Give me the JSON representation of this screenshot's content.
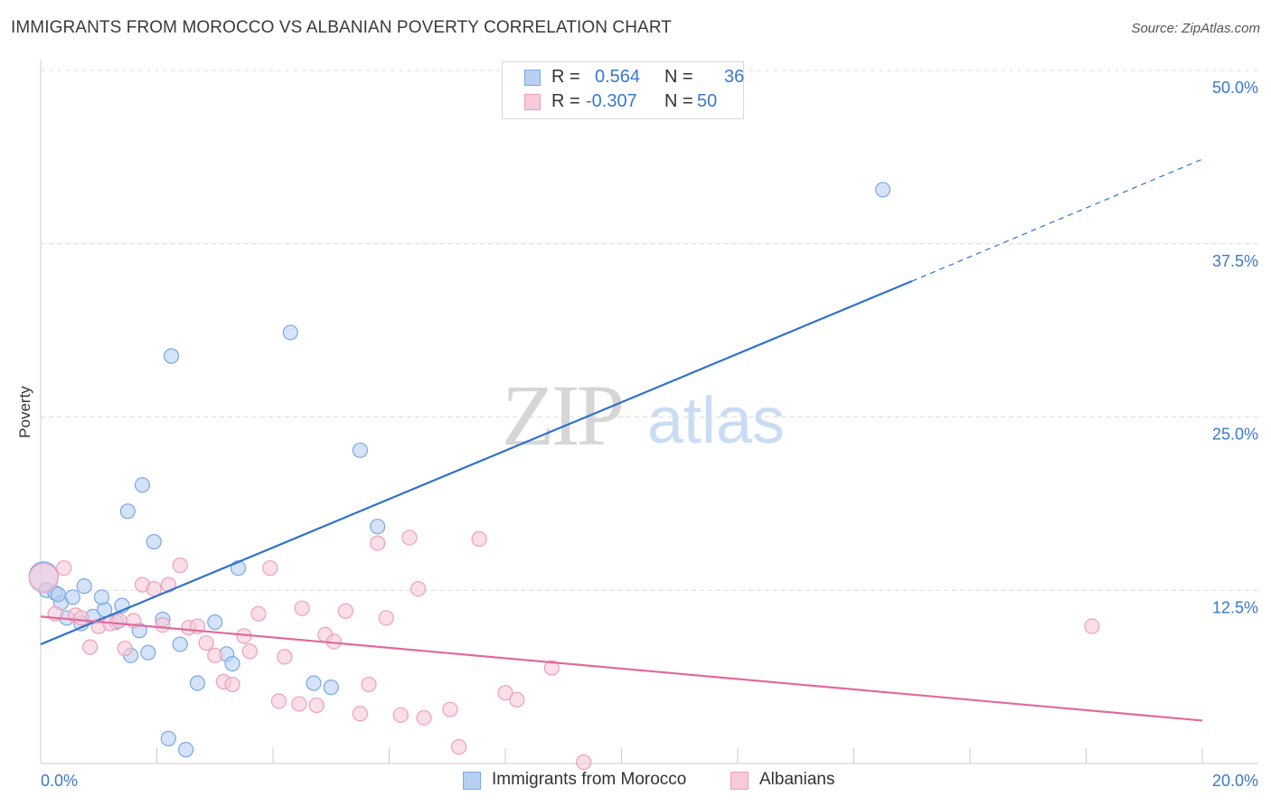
{
  "title": "IMMIGRANTS FROM MOROCCO VS ALBANIAN POVERTY CORRELATION CHART",
  "source": "Source: ZipAtlas.com",
  "watermark": {
    "zip": "ZIP",
    "atlas": "atlas"
  },
  "legend": {
    "r_label": "R =",
    "n_label": "N =",
    "series": [
      {
        "r": "0.564",
        "n": "36"
      },
      {
        "r": "-0.307",
        "n": "50"
      }
    ]
  },
  "chart_data": {
    "type": "scatter",
    "title": "IMMIGRANTS FROM MOROCCO VS ALBANIAN POVERTY CORRELATION CHART",
    "xlabel": "",
    "ylabel": "Poverty",
    "xlim": [
      0,
      20
    ],
    "ylim": [
      0,
      50
    ],
    "x_tick_labels": {
      "0": "0.0%",
      "20": "20.0%"
    },
    "y_ticks": [
      12.5,
      25.0,
      37.5,
      50.0
    ],
    "y_tick_labels": [
      "12.5%",
      "25.0%",
      "37.5%",
      "50.0%"
    ],
    "grid": true,
    "legend_position": "top-center",
    "series": [
      {
        "name": "Immigrants from Morocco",
        "color": "#7aa8e6",
        "fill": "#b7d0f2",
        "line_color": "#2f72cc",
        "trend": {
          "x0": 0,
          "y0": 8.6,
          "x1": 15,
          "y1": 34.8,
          "dash_to_x": 20,
          "dash_to_y": 43.6
        },
        "points": [
          {
            "x": 0.05,
            "y": 13.5,
            "big": true
          },
          {
            "x": 0.1,
            "y": 12.5
          },
          {
            "x": 0.25,
            "y": 12.3
          },
          {
            "x": 0.35,
            "y": 11.6
          },
          {
            "x": 0.55,
            "y": 12.0
          },
          {
            "x": 0.75,
            "y": 12.8
          },
          {
            "x": 0.45,
            "y": 10.5
          },
          {
            "x": 0.9,
            "y": 10.6
          },
          {
            "x": 1.1,
            "y": 11.1
          },
          {
            "x": 1.3,
            "y": 10.2
          },
          {
            "x": 0.7,
            "y": 10.1
          },
          {
            "x": 1.05,
            "y": 12.0
          },
          {
            "x": 1.4,
            "y": 11.4
          },
          {
            "x": 1.55,
            "y": 7.8
          },
          {
            "x": 1.7,
            "y": 9.6
          },
          {
            "x": 1.85,
            "y": 8.0
          },
          {
            "x": 2.1,
            "y": 10.4
          },
          {
            "x": 2.4,
            "y": 8.6
          },
          {
            "x": 2.7,
            "y": 5.8
          },
          {
            "x": 3.0,
            "y": 10.2
          },
          {
            "x": 3.2,
            "y": 7.9
          },
          {
            "x": 3.3,
            "y": 7.2
          },
          {
            "x": 3.4,
            "y": 14.1
          },
          {
            "x": 1.5,
            "y": 18.2
          },
          {
            "x": 1.75,
            "y": 20.1
          },
          {
            "x": 1.95,
            "y": 16.0
          },
          {
            "x": 2.25,
            "y": 29.4
          },
          {
            "x": 4.3,
            "y": 31.1
          },
          {
            "x": 5.5,
            "y": 22.6
          },
          {
            "x": 5.8,
            "y": 17.1
          },
          {
            "x": 4.7,
            "y": 5.8
          },
          {
            "x": 5.0,
            "y": 5.5
          },
          {
            "x": 2.2,
            "y": 1.8
          },
          {
            "x": 2.5,
            "y": 1.0
          },
          {
            "x": 14.5,
            "y": 41.4
          },
          {
            "x": 0.3,
            "y": 12.2
          }
        ]
      },
      {
        "name": "Albanians",
        "color": "#ee9fb9",
        "fill": "#f8c9d8",
        "line_color": "#e2699a",
        "trend": {
          "x0": 0,
          "y0": 10.6,
          "x1": 20,
          "y1": 3.1
        },
        "points": [
          {
            "x": 0.05,
            "y": 13.4,
            "big": true
          },
          {
            "x": 0.4,
            "y": 14.1
          },
          {
            "x": 0.25,
            "y": 10.8
          },
          {
            "x": 0.6,
            "y": 10.7
          },
          {
            "x": 0.85,
            "y": 8.4
          },
          {
            "x": 1.0,
            "y": 9.9
          },
          {
            "x": 1.2,
            "y": 10.1
          },
          {
            "x": 1.35,
            "y": 10.3
          },
          {
            "x": 1.45,
            "y": 8.3
          },
          {
            "x": 1.6,
            "y": 10.3
          },
          {
            "x": 1.75,
            "y": 12.9
          },
          {
            "x": 1.95,
            "y": 12.6
          },
          {
            "x": 2.1,
            "y": 10.0
          },
          {
            "x": 2.2,
            "y": 12.9
          },
          {
            "x": 2.4,
            "y": 14.3
          },
          {
            "x": 2.55,
            "y": 9.8
          },
          {
            "x": 2.7,
            "y": 9.9
          },
          {
            "x": 2.85,
            "y": 8.7
          },
          {
            "x": 3.0,
            "y": 7.8
          },
          {
            "x": 3.15,
            "y": 5.9
          },
          {
            "x": 3.3,
            "y": 5.7
          },
          {
            "x": 3.5,
            "y": 9.2
          },
          {
            "x": 3.6,
            "y": 8.1
          },
          {
            "x": 3.75,
            "y": 10.8
          },
          {
            "x": 3.95,
            "y": 14.1
          },
          {
            "x": 4.1,
            "y": 4.5
          },
          {
            "x": 4.2,
            "y": 7.7
          },
          {
            "x": 4.45,
            "y": 4.3
          },
          {
            "x": 4.5,
            "y": 11.2
          },
          {
            "x": 4.75,
            "y": 4.2
          },
          {
            "x": 4.9,
            "y": 9.3
          },
          {
            "x": 5.05,
            "y": 8.8
          },
          {
            "x": 5.25,
            "y": 11.0
          },
          {
            "x": 5.5,
            "y": 3.6
          },
          {
            "x": 5.65,
            "y": 5.7
          },
          {
            "x": 5.8,
            "y": 15.9
          },
          {
            "x": 5.95,
            "y": 10.5
          },
          {
            "x": 6.2,
            "y": 3.5
          },
          {
            "x": 6.35,
            "y": 16.3
          },
          {
            "x": 6.5,
            "y": 12.6
          },
          {
            "x": 6.6,
            "y": 3.3
          },
          {
            "x": 7.05,
            "y": 3.9
          },
          {
            "x": 7.2,
            "y": 1.2
          },
          {
            "x": 7.55,
            "y": 16.2
          },
          {
            "x": 8.0,
            "y": 5.1
          },
          {
            "x": 8.2,
            "y": 4.6
          },
          {
            "x": 8.8,
            "y": 6.9
          },
          {
            "x": 9.35,
            "y": 0.1
          },
          {
            "x": 18.1,
            "y": 9.9
          },
          {
            "x": 0.7,
            "y": 10.5
          }
        ]
      }
    ]
  },
  "bottom_legend": [
    "Immigrants from Morocco",
    "Albanians"
  ]
}
